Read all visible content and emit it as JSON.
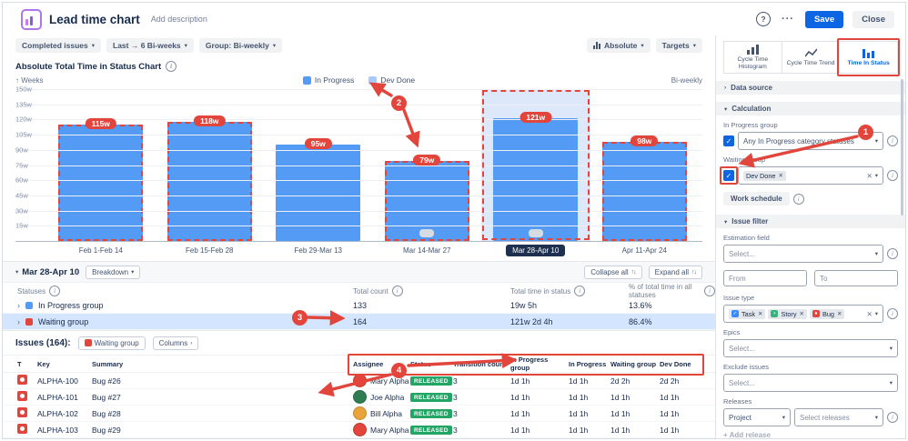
{
  "header": {
    "title": "Lead time chart",
    "add_description": "Add description",
    "help": "?",
    "more": "···",
    "save": "Save",
    "close": "Close"
  },
  "toolbar": {
    "completed_issues": "Completed issues",
    "range": "Last → 6 Bi-weeks",
    "group": "Group: Bi-weekly",
    "absolute": "Absolute",
    "targets": "Targets"
  },
  "chart": {
    "title": "Absolute Total Time in Status Chart",
    "y_axis_label": "Weeks",
    "period_label": "Bi-weekly",
    "legend": [
      {
        "label": "In Progress",
        "color": "#549BF5"
      },
      {
        "label": "Dev Done",
        "color": "#A8CBFF"
      }
    ],
    "y_ticks": [
      "150w",
      "135w",
      "120w",
      "105w",
      "90w",
      "75w",
      "60w",
      "45w",
      "30w",
      "15w"
    ],
    "chart_data": {
      "type": "bar",
      "categories": [
        "Feb 1-Feb 14",
        "Feb 15-Feb 28",
        "Feb 29-Mar 13",
        "Mar 14-Mar 27",
        "Mar 28-Apr 10",
        "Apr 11-Apr 24"
      ],
      "values_weeks": [
        115,
        118,
        95,
        79,
        121,
        98
      ],
      "labels": [
        "115w",
        "118w",
        "95w",
        "79w",
        "121w",
        "98w"
      ],
      "series": [
        {
          "name": "In Progress"
        },
        {
          "name": "Dev Done"
        }
      ],
      "selected_index": 4,
      "selected_category": "Mar 28-Apr 10",
      "ylim": [
        0,
        150
      ],
      "grid": true,
      "legend_position": "top"
    }
  },
  "breakdown": {
    "period": "Mar 28-Apr 10",
    "chip": "Breakdown",
    "collapse_all": "Collapse all",
    "expand_all": "Expand all",
    "columns": [
      "Statuses",
      "Total count",
      "Total time in status",
      "% of total time in all statuses"
    ],
    "rows": [
      {
        "name": "In Progress group",
        "color": "#549BF5",
        "count": "133",
        "time": "19w 5h",
        "percent": "13.6%",
        "highlighted": false
      },
      {
        "name": "Waiting group",
        "color": "#E2453C",
        "count": "164",
        "time": "121w 2d 4h",
        "percent": "86.4%",
        "highlighted": true
      }
    ]
  },
  "issues": {
    "title": "Issues (164):",
    "filter_chip": "Waiting group",
    "filter_chip_color": "#E2453C",
    "columns_button": "Columns",
    "columns": [
      "T",
      "Key",
      "Summary",
      "Assignee",
      "Status",
      "Transition count",
      "In Progress group",
      "In Progress",
      "Waiting group",
      "Dev Done"
    ],
    "rows": [
      {
        "key": "ALPHA-100",
        "summary": "Bug #26",
        "assignee": "Mary Alpha",
        "avatar_color": "#E2453C",
        "status": "RELEASED",
        "transitions": "3",
        "in_progress_group": "1d 1h",
        "in_progress": "1d 1h",
        "waiting_group": "2d 2h",
        "dev_done": "2d 2h"
      },
      {
        "key": "ALPHA-101",
        "summary": "Bug #27",
        "assignee": "Joe Alpha",
        "avatar_color": "#2E7D52",
        "status": "RELEASED",
        "transitions": "3",
        "in_progress_group": "1d 1h",
        "in_progress": "1d 1h",
        "waiting_group": "1d 1h",
        "dev_done": "1d 1h"
      },
      {
        "key": "ALPHA-102",
        "summary": "Bug #28",
        "assignee": "Bill Alpha",
        "avatar_color": "#E8A33A",
        "status": "RELEASED",
        "transitions": "3",
        "in_progress_group": "1d 1h",
        "in_progress": "1d 1h",
        "waiting_group": "1d 1h",
        "dev_done": "1d 1h"
      },
      {
        "key": "ALPHA-103",
        "summary": "Bug #29",
        "assignee": "Mary Alpha",
        "avatar_color": "#E2453C",
        "status": "RELEASED",
        "transitions": "3",
        "in_progress_group": "1d 1h",
        "in_progress": "1d 1h",
        "waiting_group": "1d 1h",
        "dev_done": "1d 1h"
      }
    ]
  },
  "sidebar": {
    "tabs": [
      {
        "label": "Cycle Time Histogram",
        "active": false
      },
      {
        "label": "Cycle Time Trend",
        "active": false
      },
      {
        "label": "Time In Status",
        "active": true
      }
    ],
    "sections": {
      "data_source": "Data source",
      "calculation": "Calculation",
      "issue_filter": "Issue filter"
    },
    "calculation": {
      "in_progress_label": "In Progress group",
      "in_progress_value": "Any In Progress category statuses",
      "waiting_label": "Waiting group",
      "waiting_chip": "Dev Done",
      "work_schedule": "Work schedule"
    },
    "issue_filter": {
      "estimation_label": "Estimation field",
      "estimation_placeholder": "Select...",
      "from_placeholder": "From",
      "to_placeholder": "To",
      "issue_type_label": "Issue type",
      "issue_type_chips": [
        {
          "label": "Task",
          "color": "#388BFF",
          "glyph": "✓"
        },
        {
          "label": "Story",
          "color": "#36B37E",
          "glyph": "▪"
        },
        {
          "label": "Bug",
          "color": "#E2453C",
          "glyph": "●"
        }
      ],
      "epics_label": "Epics",
      "epics_placeholder": "Select...",
      "exclude_label": "Exclude issues",
      "exclude_placeholder": "Select...",
      "releases_label": "Releases",
      "project_value": "Project",
      "releases_placeholder": "Select releases",
      "add_release": "+ Add release"
    }
  },
  "annotations": {
    "labels": [
      "1",
      "2",
      "3",
      "4"
    ],
    "color": "#E2453C",
    "dashed_bar_indices": [
      0,
      1,
      3,
      5
    ],
    "highlighted_band_index": 4,
    "mini_pill_bar_indices": [
      3,
      4
    ]
  }
}
